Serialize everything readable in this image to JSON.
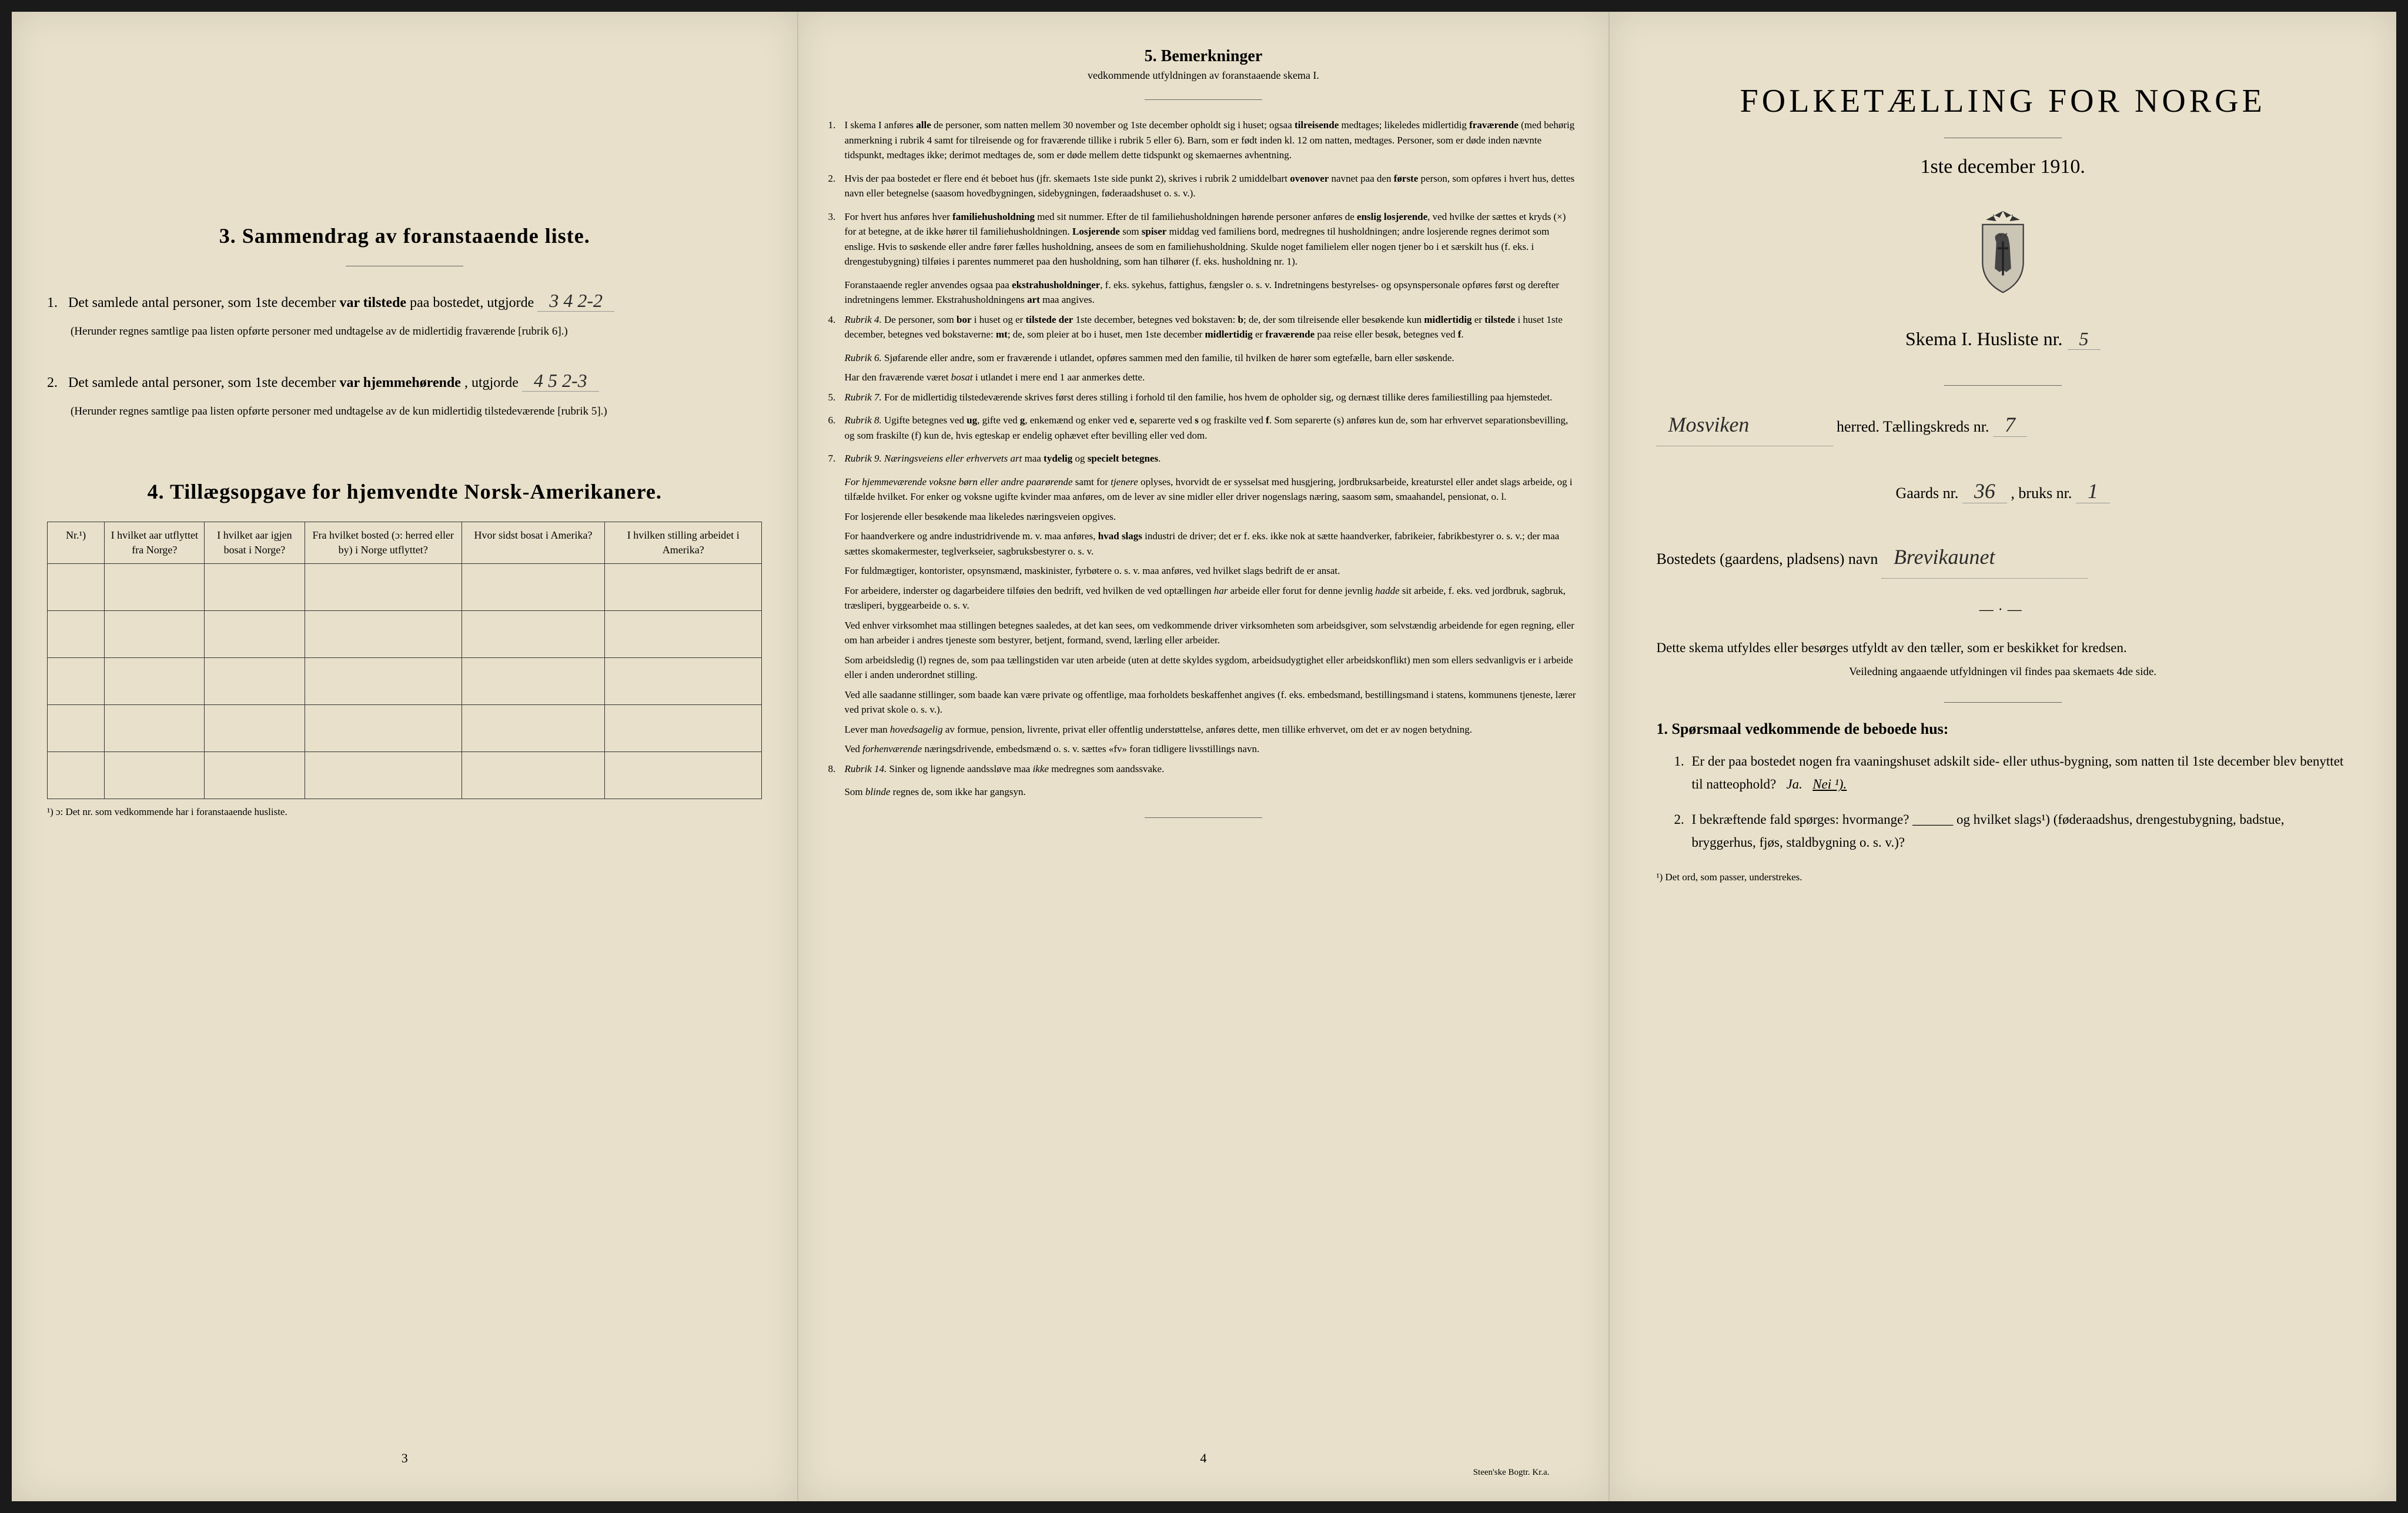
{
  "page1": {
    "section3": {
      "title": "3.   Sammendrag av foranstaaende liste.",
      "item1_pre": "Det samlede antal personer, som 1ste december",
      "item1_bold": "var tilstede",
      "item1_post": "paa bostedet, utgjorde",
      "item1_val": "3 4  2-2",
      "item1_strike": "3",
      "item1_note": "(Herunder regnes samtlige paa listen opførte personer med undtagelse av de midlertidig fraværende [rubrik 6].)",
      "item2_pre": "Det samlede antal personer, som 1ste december",
      "item2_bold": "var hjemmehørende",
      "item2_post": ", utgjorde",
      "item2_val": "4 5   2-3",
      "item2_strike": "4",
      "item2_note": "(Herunder regnes samtlige paa listen opførte personer med undtagelse av de kun midlertidig tilstedeværende [rubrik 5].)"
    },
    "section4": {
      "title": "4.   Tillægsopgave for hjemvendte Norsk-Amerikanere.",
      "col1": "Nr.¹)",
      "col2": "I hvilket aar utflyttet fra Norge?",
      "col3": "I hvilket aar igjen bosat i Norge?",
      "col4": "Fra hvilket bosted (ɔ: herred eller by) i Norge utflyttet?",
      "col5": "Hvor sidst bosat i Amerika?",
      "col6": "I hvilken stilling arbeidet i Amerika?",
      "footnote": "¹) ɔ: Det nr. som vedkommende har i foranstaaende husliste."
    },
    "page_num": "3"
  },
  "page2": {
    "title": "5.   Bemerkninger",
    "subtitle": "vedkommende utfyldningen av foranstaaende skema I.",
    "items": [
      {
        "n": "1.",
        "t": "I skema I anføres <strong>alle</strong> de personer, som natten mellem 30 november og 1ste december opholdt sig i huset; ogsaa <strong>tilreisende</strong> medtages; likeledes midlertidig <strong>fraværende</strong> (med behørig anmerkning i rubrik 4 samt for tilreisende og for fraværende tillike i rubrik 5 eller 6). Barn, som er født inden kl. 12 om natten, medtages. Personer, som er døde inden nævnte tidspunkt, medtages ikke; derimot medtages de, som er døde mellem dette tidspunkt og skemaernes avhentning."
      },
      {
        "n": "2.",
        "t": "Hvis der paa bostedet er flere end ét beboet hus (jfr. skemaets 1ste side punkt 2), skrives i rubrik 2 umiddelbart <strong>ovenover</strong> navnet paa den <strong>første</strong> person, som opføres i hvert hus, dettes navn eller betegnelse (saasom hovedbygningen, sidebygningen, føderaadshuset o. s. v.)."
      },
      {
        "n": "3.",
        "t": "For hvert hus anføres hver <strong>familiehusholdning</strong> med sit nummer. Efter de til familiehusholdningen hørende personer anføres de <strong>enslig losjerende</strong>, ved hvilke der sættes et kryds (×) for at betegne, at de ikke hører til familiehusholdningen. <strong>Losjerende</strong> som <strong>spiser</strong> middag ved familiens bord, medregnes til husholdningen; andre losjerende regnes derimot som enslige. Hvis to søskende eller andre fører fælles husholdning, ansees de som en familiehusholdning. Skulde noget familielem eller nogen tjener bo i et særskilt hus (f. eks. i drengestubygning) tilføies i parentes nummeret paa den husholdning, som han tilhører (f. eks. husholdning nr. 1)."
      }
    ],
    "paras1": [
      "Foranstaaende regler anvendes ogsaa paa <strong>ekstrahusholdninger</strong>, f. eks. sykehus, fattighus, fængsler o. s. v. Indretningens bestyrelses- og opsynspersonale opføres først og derefter indretningens lemmer. Ekstrahusholdningens <strong>art</strong> maa angives."
    ],
    "items2": [
      {
        "n": "4.",
        "t": "<em>Rubrik 4.</em> De personer, som <strong>bor</strong> i huset og er <strong>tilstede der</strong> 1ste december, betegnes ved bokstaven: <strong>b</strong>; de, der som tilreisende eller besøkende kun <strong>midlertidig</strong> er <strong>tilstede</strong> i huset 1ste december, betegnes ved bokstaverne: <strong>mt</strong>; de, som pleier at bo i huset, men 1ste december <strong>midlertidig</strong> er <strong>fraværende</strong> paa reise eller besøk, betegnes ved <strong>f</strong>."
      }
    ],
    "paras2": [
      "<em>Rubrik 6.</em> Sjøfarende eller andre, som er fraværende i utlandet, opføres sammen med den familie, til hvilken de hører som egtefælle, barn eller søskende.",
      "Har den fraværende været <em>bosat</em> i utlandet i mere end 1 aar anmerkes dette."
    ],
    "items3": [
      {
        "n": "5.",
        "t": "<em>Rubrik 7.</em> For de midlertidig tilstedeværende skrives først deres stilling i forhold til den familie, hos hvem de opholder sig, og dernæst tillike deres familiestilling paa hjemstedet."
      },
      {
        "n": "6.",
        "t": "<em>Rubrik 8.</em> Ugifte betegnes ved <strong>ug</strong>, gifte ved <strong>g</strong>, enkemænd og enker ved <strong>e</strong>, separerte ved <strong>s</strong> og fraskilte ved <strong>f</strong>. Som separerte (s) anføres kun de, som har erhvervet separationsbevilling, og som fraskilte (f) kun de, hvis egteskap er endelig ophævet efter bevilling eller ved dom."
      },
      {
        "n": "7.",
        "t": "<em>Rubrik 9.</em> <em>Næringsveiens eller erhvervets art</em> maa <strong>tydelig</strong> og <strong>specielt betegnes</strong>."
      }
    ],
    "paras3": [
      "<em>For hjemmeværende voksne børn eller andre paarørende</em> samt for <em>tjenere</em> oplyses, hvorvidt de er sysselsat med husgjering, jordbruksarbeide, kreaturstel eller andet slags arbeide, og i tilfælde hvilket. For enker og voksne ugifte kvinder maa anføres, om de lever av sine midler eller driver nogenslags næring, saasom søm, smaahandel, pensionat, o. l.",
      "For losjerende eller besøkende maa likeledes næringsveien opgives.",
      "For haandverkere og andre industridrivende m. v. maa anføres, <strong>hvad slags</strong> industri de driver; det er f. eks. ikke nok at sætte haandverker, fabrikeier, fabrikbestyrer o. s. v.; der maa sættes skomakermester, teglverkseier, sagbruksbestyrer o. s. v.",
      "For fuldmægtiger, kontorister, opsynsmænd, maskinister, fyrbøtere o. s. v. maa anføres, ved hvilket slags bedrift de er ansat.",
      "For arbeidere, inderster og dagarbeidere tilføies den bedrift, ved hvilken de ved optællingen <em>har</em> arbeide eller forut for denne jevnlig <em>hadde</em> sit arbeide, f. eks. ved jordbruk, sagbruk, træsliperi, byggearbeide o. s. v.",
      "Ved enhver virksomhet maa stillingen betegnes saaledes, at det kan sees, om vedkommende driver virksomheten som arbeidsgiver, som selvstændig arbeidende for egen regning, eller om han arbeider i andres tjeneste som bestyrer, betjent, formand, svend, lærling eller arbeider.",
      "Som arbeidsledig (l) regnes de, som paa tællingstiden var uten arbeide (uten at dette skyldes sygdom, arbeidsudygtighet eller arbeidskonflikt) men som ellers sedvanligvis er i arbeide eller i anden underordnet stilling.",
      "Ved alle saadanne stillinger, som baade kan være private og offentlige, maa forholdets beskaffenhet angives (f. eks. embedsmand, bestillingsmand i statens, kommunens tjeneste, lærer ved privat skole o. s. v.).",
      "Lever man <em>hovedsagelig</em> av formue, pension, livrente, privat eller offentlig understøttelse, anføres dette, men tillike erhvervet, om det er av nogen betydning.",
      "Ved <em>forhenværende</em> næringsdrivende, embedsmænd o. s. v. sættes «fv» foran tidligere livsstillings navn."
    ],
    "items4": [
      {
        "n": "8.",
        "t": "<em>Rubrik 14.</em> Sinker og lignende aandssløve maa <em>ikke</em> medregnes som aandssvake."
      }
    ],
    "paras4": [
      "Som <em>blinde</em> regnes de, som ikke har gangsyn."
    ],
    "page_num": "4",
    "imprint": "Steen'ske Bogtr. Kr.a."
  },
  "page3": {
    "main_title": "FOLKETÆLLING FOR NORGE",
    "date": "1ste december 1910.",
    "skema": "Skema I.   Husliste nr.",
    "husliste_nr": "5",
    "herred_val": "Mosviken",
    "herred_label": "herred.   Tællingskreds nr.",
    "kreds_nr": "7",
    "gaards_label": "Gaards nr.",
    "gaards_nr": "36",
    "bruks_label": ", bruks nr.",
    "bruks_nr": "1",
    "bosted_label": "Bostedets (gaardens, pladsens) navn",
    "bosted_val": "Brevikaunet",
    "instr1": "Dette skema utfyldes eller besørges utfyldt av den tæller, som er beskikket for kredsen.",
    "instr2": "Veiledning angaaende utfyldningen vil findes paa skemaets 4de side.",
    "q_head": "1. Spørsmaal vedkommende de beboede hus:",
    "q1": "Er der paa bostedet nogen fra vaaningshuset adskilt side- eller uthus-bygning, som natten til 1ste december blev benyttet til natteophold?",
    "q1_ja": "Ja.",
    "q1_nei": "Nei ¹).",
    "q2": "I bekræftende fald spørges: hvormange? ______ og hvilket slags¹) (føderaadshus, drengestubygning, badstue, bryggerhus, fjøs, staldbygning o. s. v.)?",
    "footnote": "¹) Det ord, som passer, understrekes."
  }
}
